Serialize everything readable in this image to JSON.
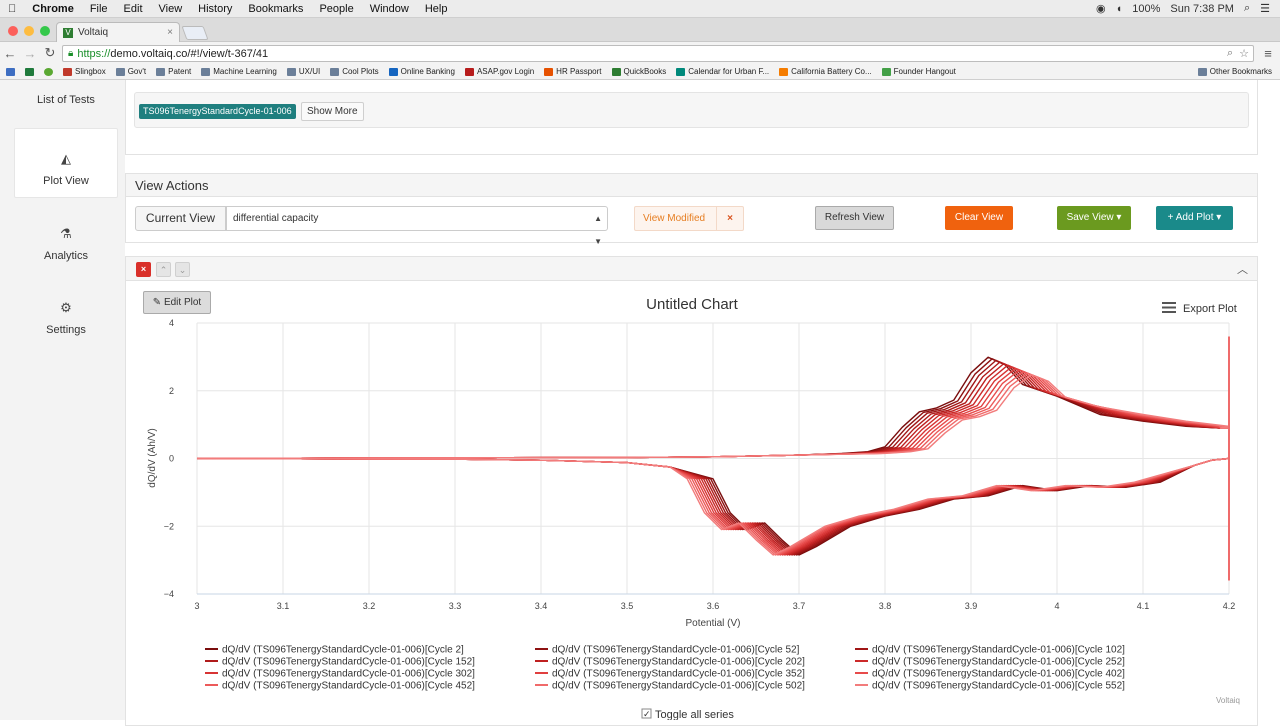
{
  "menubar": {
    "apple": "",
    "app": "Chrome",
    "items": [
      "File",
      "Edit",
      "View",
      "History",
      "Bookmarks",
      "People",
      "Window",
      "Help"
    ],
    "battery": "100%",
    "clock": "Sun 7:38 PM"
  },
  "browser": {
    "tab_title": "Voltaiq",
    "tab_favicon": "V",
    "url_scheme": "https://",
    "url_rest": "demo.voltaiq.co/#!/view/t-367/41"
  },
  "bookmarks": [
    {
      "label": "Slingbox",
      "color": "#c0392b"
    },
    {
      "label": "Gov't",
      "color": "#6b7f99"
    },
    {
      "label": "Patent",
      "color": "#6b7f99"
    },
    {
      "label": "Machine Learning",
      "color": "#6b7f99"
    },
    {
      "label": "UX/UI",
      "color": "#6b7f99"
    },
    {
      "label": "Cool Plots",
      "color": "#6b7f99"
    },
    {
      "label": "Online Banking",
      "color": "#1565c0"
    },
    {
      "label": "ASAP.gov Login",
      "color": "#b71c1c"
    },
    {
      "label": "HR Passport",
      "color": "#e65100"
    },
    {
      "label": "QuickBooks",
      "color": "#2e7d32"
    },
    {
      "label": "Calendar for Urban F...",
      "color": "#00897b"
    },
    {
      "label": "California Battery Co...",
      "color": "#f57c00"
    },
    {
      "label": "Founder Hangout",
      "color": "#43a047"
    }
  ],
  "bookmarks_other": "Other Bookmarks",
  "sidebar": {
    "items": [
      {
        "label": "List of Tests",
        "icon": "list-icon"
      },
      {
        "label": "Plot View",
        "icon": "area-chart-icon"
      },
      {
        "label": "Analytics",
        "icon": "flask-icon"
      },
      {
        "label": "Settings",
        "icon": "gears-icon"
      }
    ]
  },
  "tests_panel": {
    "selected_test": "TS096TenergyStandardCycle-01-006",
    "show_more": "Show More"
  },
  "view_actions": {
    "title": "View Actions",
    "current_view_label": "Current View",
    "current_view_value": "differential capacity",
    "view_modified": "View Modified",
    "refresh": "Refresh View",
    "clear": "Clear View",
    "save": "Save View ▾",
    "add_plot": "+ Add Plot ▾"
  },
  "plot_panel": {
    "edit_plot": "Edit Plot",
    "export_plot": "Export Plot",
    "toggle_all": "Toggle all series",
    "credit": "Voltaiq"
  },
  "chart_data": {
    "type": "line",
    "title": "Untitled Chart",
    "xlabel": "Potential (V)",
    "ylabel": "dQ/dV (Ah/V)",
    "xlim": [
      3,
      4.2
    ],
    "ylim": [
      -4,
      4
    ],
    "xticks": [
      "3",
      "3.1",
      "3.2",
      "3.3",
      "3.4",
      "3.5",
      "3.6",
      "3.7",
      "3.8",
      "3.9",
      "4",
      "4.1",
      "4.2"
    ],
    "yticks": [
      "4",
      "2",
      "0",
      "−2",
      "−4"
    ],
    "legend_placement": "bottom",
    "series": [
      {
        "name": "dQ/dV (TS096TenergyStandardCycle-01-006)[Cycle 2]",
        "cycle": 2,
        "color": "#7a0d0d"
      },
      {
        "name": "dQ/dV (TS096TenergyStandardCycle-01-006)[Cycle 52]",
        "cycle": 52,
        "color": "#8e1212"
      },
      {
        "name": "dQ/dV (TS096TenergyStandardCycle-01-006)[Cycle 102]",
        "cycle": 102,
        "color": "#a01616"
      },
      {
        "name": "dQ/dV (TS096TenergyStandardCycle-01-006)[Cycle 152]",
        "cycle": 152,
        "color": "#b01b1b"
      },
      {
        "name": "dQ/dV (TS096TenergyStandardCycle-01-006)[Cycle 202]",
        "cycle": 202,
        "color": "#bf2020"
      },
      {
        "name": "dQ/dV (TS096TenergyStandardCycle-01-006)[Cycle 252]",
        "cycle": 252,
        "color": "#cc2a2a"
      },
      {
        "name": "dQ/dV (TS096TenergyStandardCycle-01-006)[Cycle 302]",
        "cycle": 302,
        "color": "#d73434"
      },
      {
        "name": "dQ/dV (TS096TenergyStandardCycle-01-006)[Cycle 352]",
        "cycle": 352,
        "color": "#e03f3f"
      },
      {
        "name": "dQ/dV (TS096TenergyStandardCycle-01-006)[Cycle 402]",
        "cycle": 402,
        "color": "#e74b4b"
      },
      {
        "name": "dQ/dV (TS096TenergyStandardCycle-01-006)[Cycle 452]",
        "cycle": 452,
        "color": "#ec5a5a"
      },
      {
        "name": "dQ/dV (TS096TenergyStandardCycle-01-006)[Cycle 502]",
        "cycle": 502,
        "color": "#f06a6a"
      },
      {
        "name": "dQ/dV (TS096TenergyStandardCycle-01-006)[Cycle 552]",
        "cycle": 552,
        "color": "#f27c7c"
      }
    ],
    "charge_curve": {
      "x": [
        3.0,
        3.3,
        3.5,
        3.6,
        3.7,
        3.75,
        3.78,
        3.8,
        3.82,
        3.84,
        3.86,
        3.88,
        3.9,
        3.92,
        3.94,
        3.96,
        3.98,
        4.0,
        4.05,
        4.1,
        4.15,
        4.19,
        4.2
      ],
      "y": [
        0,
        0.02,
        0.03,
        0.05,
        0.1,
        0.15,
        0.2,
        0.3,
        0.8,
        1.2,
        1.3,
        1.5,
        2.2,
        2.6,
        2.4,
        1.9,
        1.75,
        1.6,
        1.3,
        1.1,
        0.95,
        0.9,
        0.9
      ]
    },
    "discharge_curve": {
      "x": [
        4.2,
        4.18,
        4.16,
        4.12,
        4.08,
        4.04,
        4.0,
        3.96,
        3.92,
        3.88,
        3.84,
        3.8,
        3.76,
        3.72,
        3.7,
        3.68,
        3.66,
        3.64,
        3.62,
        3.6,
        3.55,
        3.5,
        3.4,
        3.3,
        3.0
      ],
      "y": [
        0,
        -0.05,
        -0.2,
        -0.7,
        -0.85,
        -0.8,
        -0.95,
        -0.8,
        -1.1,
        -1.2,
        -1.5,
        -1.7,
        -2.0,
        -2.6,
        -2.85,
        -2.4,
        -1.9,
        -2.1,
        -1.6,
        -0.6,
        -0.25,
        -0.12,
        -0.05,
        -0.02,
        0
      ]
    }
  }
}
